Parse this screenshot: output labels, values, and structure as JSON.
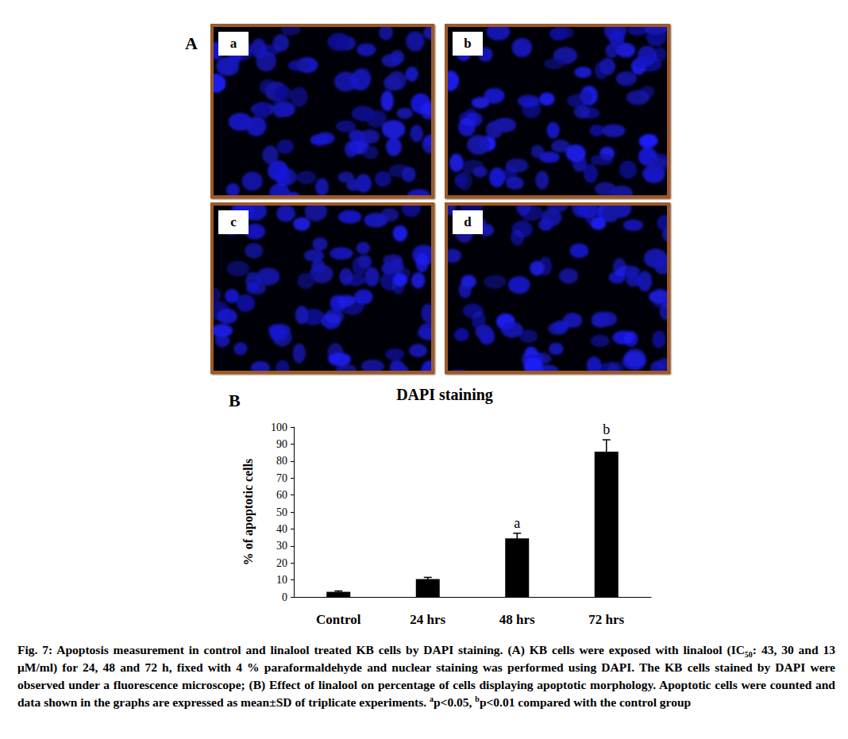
{
  "panel_a": {
    "label": "A",
    "images": [
      {
        "label": "a"
      },
      {
        "label": "b"
      },
      {
        "label": "c"
      },
      {
        "label": "d"
      }
    ]
  },
  "panel_b_label": "B",
  "chart_data": {
    "type": "bar",
    "title": "DAPI staining",
    "y_label": "% of apoptotic cells",
    "categories": [
      "Control",
      "24 hrs",
      "48 hrs",
      "72 hrs"
    ],
    "values": [
      3,
      10.5,
      34.5,
      85.5
    ],
    "errors": [
      0.5,
      1,
      3,
      7
    ],
    "annotations": [
      {
        "category": "48 hrs",
        "text": "a"
      },
      {
        "category": "72 hrs",
        "text": "b"
      }
    ],
    "color": "#000000",
    "ylim": [
      0,
      100
    ],
    "yticks": [
      0,
      10,
      20,
      30,
      40,
      50,
      60,
      70,
      80,
      90,
      100
    ],
    "grid": false
  },
  "caption": [
    {
      "text": "Fig. 7: Apoptosis measurement in control and linalool treated KB cells by DAPI staining. (A) KB cells were exposed with linalool (IC"
    },
    {
      "text": "50",
      "style": "sub"
    },
    {
      "text": ": 43, 30 and 13 μM/ml) for 24, 48 and 72 h, fixed with 4 % paraformaldehyde and nuclear staining was performed using DAPI. The KB cells stained by DAPI were observed under a fluorescence microscope; (B) Effect of linalool on percentage of cells displaying apoptotic morphology. Apoptotic cells were counted and data shown in the graphs are expressed as mean±SD of triplicate experiments. "
    },
    {
      "text": "a",
      "style": "sup"
    },
    {
      "text": "p<0.05, "
    },
    {
      "text": "b",
      "style": "sup"
    },
    {
      "text": "p<0.01 compared with the control group"
    }
  ]
}
